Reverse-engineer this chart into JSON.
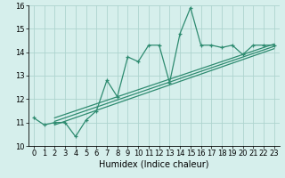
{
  "xlabel": "Humidex (Indice chaleur)",
  "ylabel": "",
  "x_data": [
    0,
    1,
    2,
    3,
    4,
    5,
    6,
    7,
    8,
    9,
    10,
    11,
    12,
    13,
    14,
    15,
    16,
    17,
    18,
    19,
    20,
    21,
    22,
    23
  ],
  "y_main": [
    11.2,
    10.9,
    11.0,
    11.0,
    10.4,
    11.1,
    11.5,
    12.8,
    12.1,
    13.8,
    13.6,
    14.3,
    14.3,
    12.7,
    14.8,
    15.9,
    14.3,
    14.3,
    14.2,
    14.3,
    13.9,
    14.3,
    14.3,
    14.3
  ],
  "xlim": [
    -0.5,
    23.5
  ],
  "ylim": [
    10,
    16
  ],
  "yticks": [
    10,
    11,
    12,
    13,
    14,
    15,
    16
  ],
  "xticks": [
    0,
    1,
    2,
    3,
    4,
    5,
    6,
    7,
    8,
    9,
    10,
    11,
    12,
    13,
    14,
    15,
    16,
    17,
    18,
    19,
    20,
    21,
    22,
    23
  ],
  "line_color": "#2e8b70",
  "bg_color": "#d6efec",
  "grid_color": "#aed4cf",
  "tick_fontsize": 6,
  "label_fontsize": 7,
  "reg_line1": [
    2.0,
    11.05,
    23.0,
    14.25
  ],
  "reg_line2": [
    2.0,
    11.2,
    23.0,
    14.35
  ],
  "reg_line3": [
    2.0,
    10.9,
    23.0,
    14.15
  ]
}
